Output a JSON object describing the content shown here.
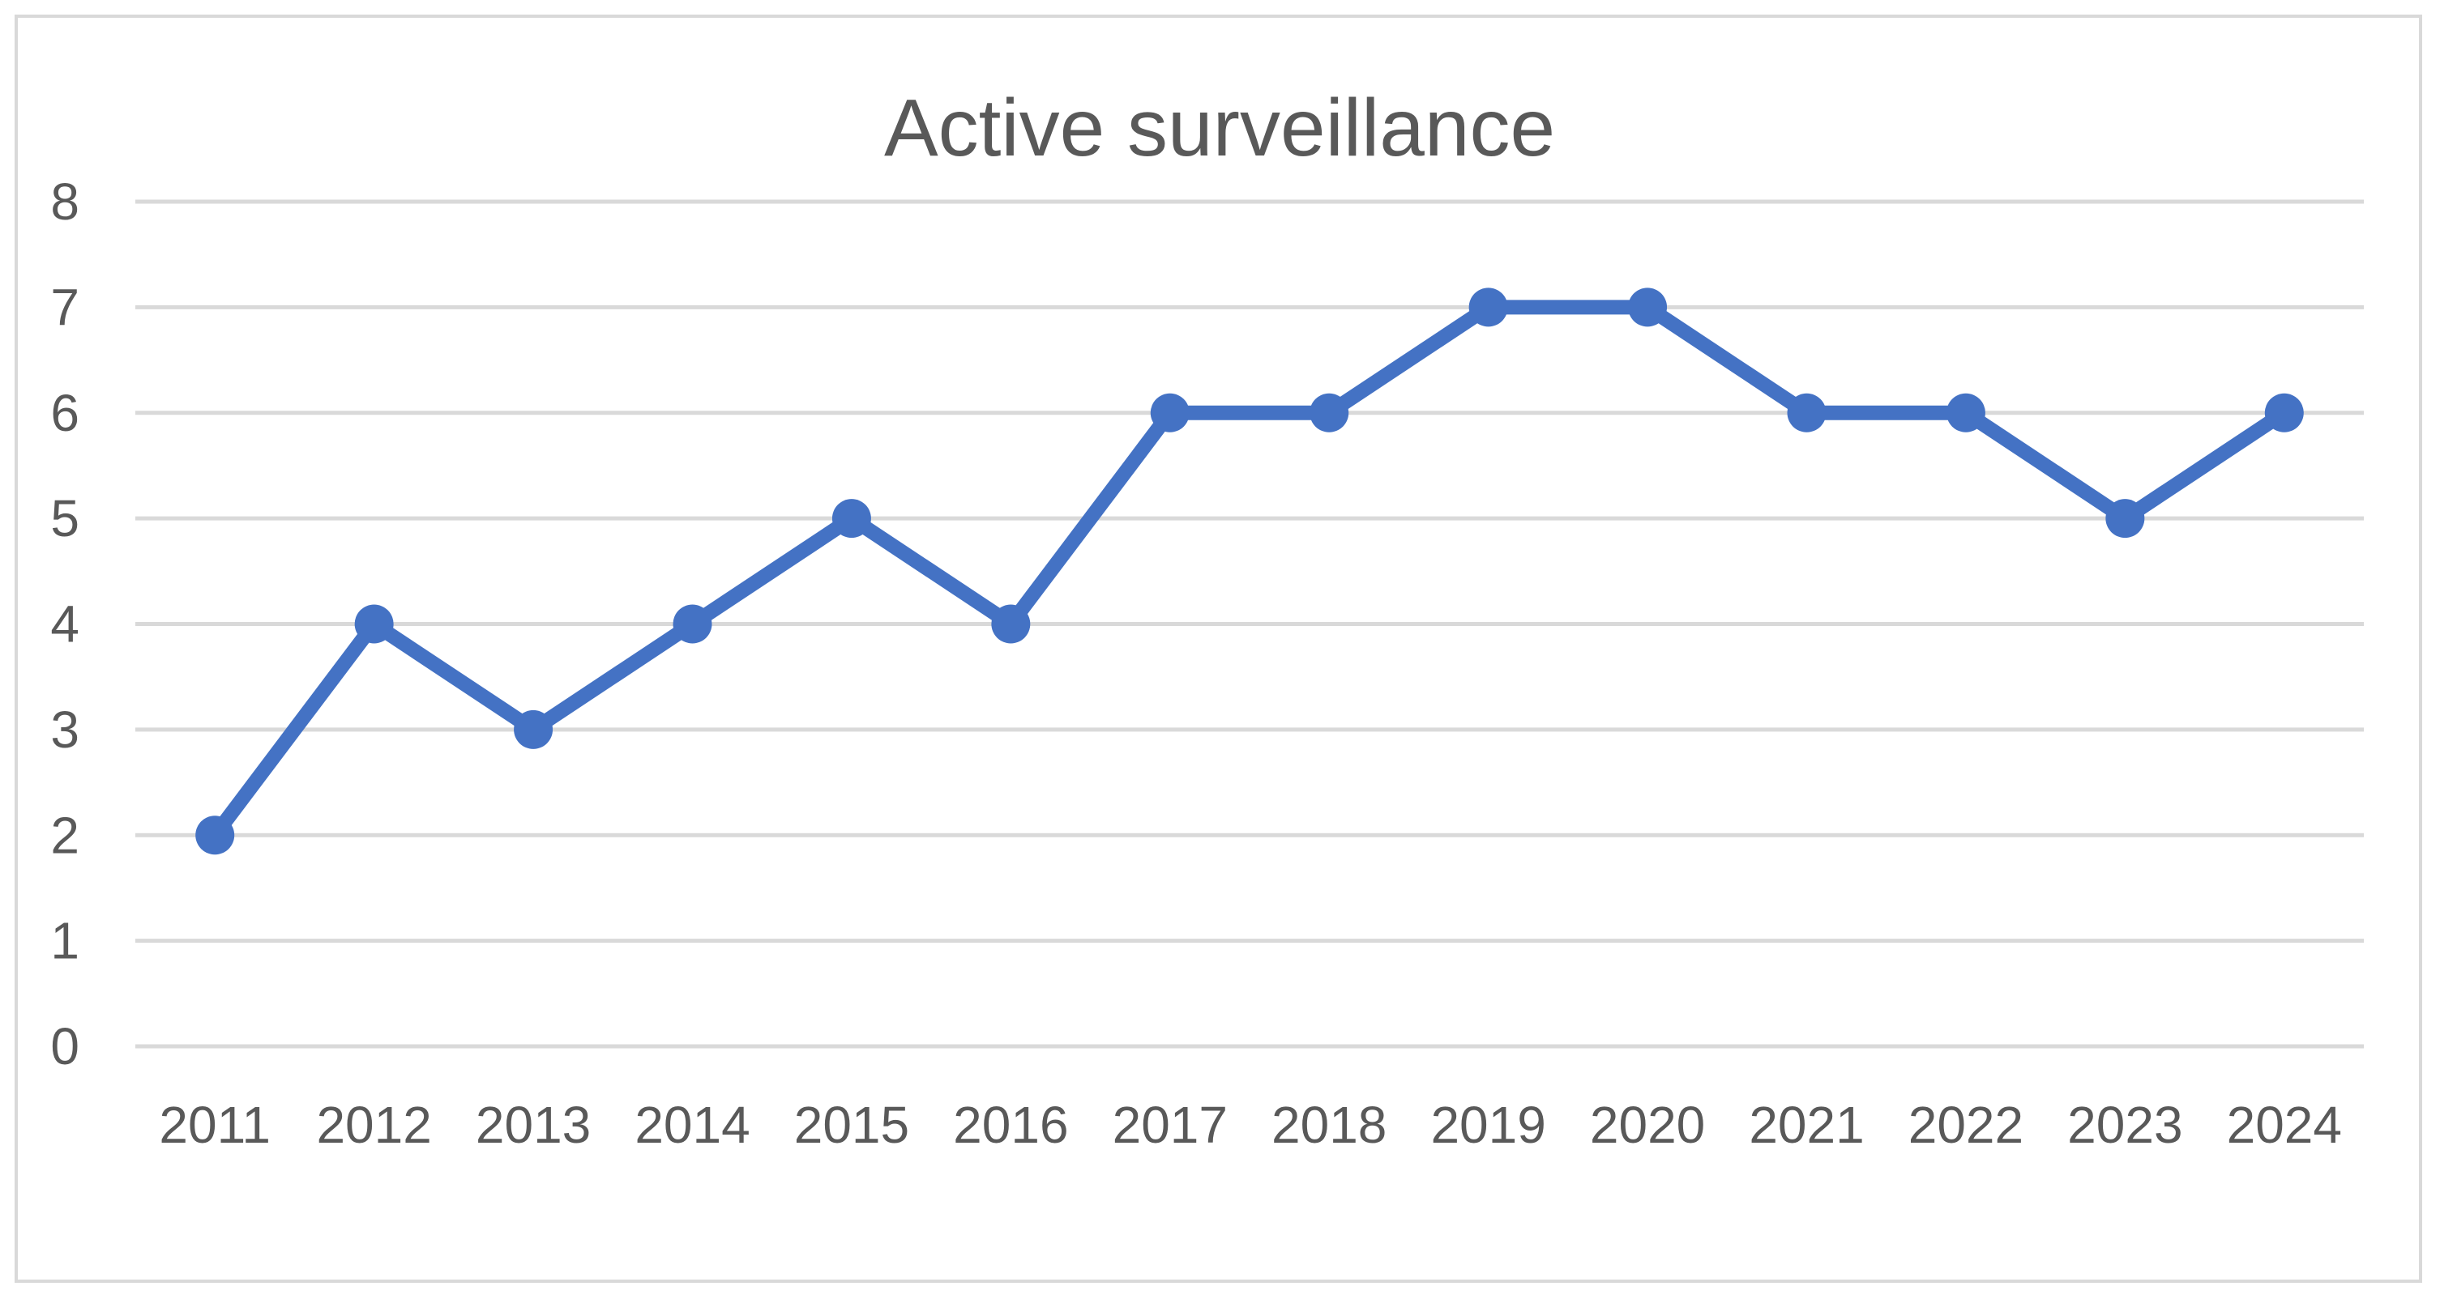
{
  "chart_data": {
    "type": "line",
    "title": "Active surveillance",
    "xlabel": "",
    "ylabel": "",
    "categories": [
      "2011",
      "2012",
      "2013",
      "2014",
      "2015",
      "2016",
      "2017",
      "2018",
      "2019",
      "2020",
      "2021",
      "2022",
      "2023",
      "2024"
    ],
    "series": [
      {
        "values": [
          2,
          4,
          3,
          4,
          5,
          4,
          6,
          6,
          7,
          7,
          6,
          6,
          5,
          6
        ],
        "color": "#4472c4",
        "marker": "circle"
      }
    ],
    "ylim": [
      0,
      8
    ],
    "yticks": [
      "0",
      "1",
      "2",
      "3",
      "4",
      "5",
      "6",
      "7",
      "8"
    ],
    "grid": true,
    "legend": "none"
  },
  "colors": {
    "series": "#4472c4",
    "grid": "#d9d9d9",
    "text": "#595959",
    "border": "#d9d9d9"
  }
}
